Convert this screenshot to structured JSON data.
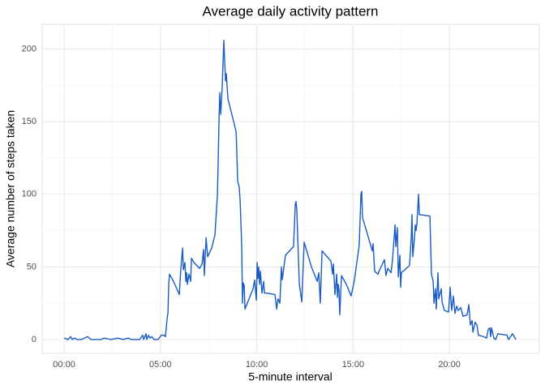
{
  "chart_data": {
    "type": "line",
    "title": "Average daily activity pattern",
    "xlabel": "5-minute interval",
    "ylabel": "Average number of steps taken",
    "grid": true,
    "xlim": [
      -1.14,
      24.67
    ],
    "ylim": [
      -9.5,
      217
    ],
    "xticks": [
      {
        "value": 0,
        "label": "00:00"
      },
      {
        "value": 5,
        "label": "05:00"
      },
      {
        "value": 10,
        "label": "10:00"
      },
      {
        "value": 15,
        "label": "15:00"
      },
      {
        "value": 20,
        "label": "20:00"
      }
    ],
    "yticks": [
      0,
      50,
      100,
      150,
      200
    ],
    "x": [
      0,
      0.21,
      0.34,
      0.42,
      0.55,
      0.67,
      0.88,
      1.22,
      1.39,
      1.94,
      2.06,
      2.44,
      2.78,
      3.07,
      3.33,
      3.49,
      3.92,
      4.08,
      4.13,
      4.25,
      4.29,
      4.38,
      4.46,
      4.55,
      4.67,
      4.88,
      5.05,
      5.18,
      5.26,
      5.35,
      5.39,
      5.43,
      5.47,
      5.68,
      5.98,
      6.06,
      6.15,
      6.19,
      6.27,
      6.32,
      6.36,
      6.4,
      6.48,
      6.57,
      6.61,
      6.74,
      7.03,
      7.16,
      7.24,
      7.28,
      7.37,
      7.45,
      7.66,
      7.83,
      7.96,
      8.04,
      8.08,
      8.13,
      8.21,
      8.29,
      8.38,
      8.42,
      8.5,
      8.93,
      9.01,
      9.09,
      9.14,
      9.22,
      9.26,
      9.3,
      9.35,
      9.39,
      9.51,
      9.81,
      9.89,
      9.98,
      10.02,
      10.06,
      10.1,
      10.15,
      10.19,
      10.27,
      10.36,
      10.4,
      10.48,
      10.95,
      11.03,
      11.11,
      11.2,
      11.28,
      11.32,
      11.49,
      11.91,
      12.0,
      12.04,
      12.08,
      12.21,
      12.34,
      12.46,
      12.84,
      13.14,
      13.22,
      13.3,
      13.39,
      13.85,
      13.94,
      13.98,
      14.06,
      14.15,
      14.19,
      14.23,
      14.27,
      14.31,
      14.4,
      14.65,
      14.9,
      15.07,
      15.32,
      15.41,
      15.45,
      15.49,
      16.0,
      16.04,
      16.12,
      16.29,
      16.38,
      16.63,
      16.71,
      16.8,
      16.97,
      17.05,
      17.18,
      17.22,
      17.3,
      17.35,
      17.43,
      17.47,
      17.51,
      17.6,
      17.77,
      17.93,
      18.02,
      18.06,
      18.1,
      18.19,
      18.23,
      18.27,
      18.31,
      18.4,
      18.44,
      18.99,
      19.07,
      19.16,
      19.2,
      19.28,
      19.32,
      19.41,
      19.45,
      19.58,
      19.62,
      19.66,
      19.74,
      19.96,
      20.04,
      20.12,
      20.21,
      20.29,
      20.38,
      20.46,
      20.59,
      20.71,
      20.92,
      21.01,
      21.09,
      21.18,
      21.22,
      21.34,
      21.43,
      21.51,
      21.77,
      21.93,
      22.02,
      22.1,
      22.14,
      22.19,
      22.31,
      22.4,
      22.52,
      22.99,
      23.07,
      23.28,
      23.37,
      23.45
    ],
    "series": [
      {
        "name": "steps",
        "color": "#1a5bc4",
        "values": [
          1,
          0,
          2,
          0,
          1,
          0,
          0,
          2,
          0,
          0,
          1,
          0,
          1,
          0,
          1,
          0,
          0,
          3,
          0,
          4,
          0,
          3,
          1,
          2,
          0,
          0,
          3,
          3,
          2,
          15,
          18,
          38,
          45,
          40,
          31,
          49,
          63,
          48,
          53,
          40,
          46,
          38,
          45,
          40,
          56,
          53,
          49,
          52,
          62,
          44,
          70,
          57,
          63,
          72,
          100,
          150,
          170,
          155,
          175,
          206,
          178,
          183,
          166,
          143,
          109,
          105,
          95,
          64,
          25,
          39,
          37,
          21,
          25,
          35,
          41,
          27,
          53,
          42,
          50,
          38,
          47,
          32,
          40,
          32,
          32,
          31,
          21,
          28,
          25,
          50,
          41,
          58,
          64,
          93,
          95,
          89,
          38,
          26,
          67,
          50,
          40,
          46,
          25,
          61,
          54,
          45,
          52,
          31,
          45,
          29,
          38,
          34,
          17,
          44,
          38,
          30,
          41,
          65,
          100,
          102,
          84,
          61,
          66,
          47,
          45,
          48,
          55,
          44,
          49,
          46,
          55,
          79,
          64,
          77,
          43,
          58,
          36,
          46,
          47,
          49,
          51,
          70,
          86,
          57,
          70,
          79,
          75,
          79,
          100,
          86,
          85,
          45,
          40,
          25,
          35,
          21,
          46,
          28,
          35,
          26,
          24,
          20,
          19,
          36,
          20,
          30,
          18,
          23,
          20,
          22,
          16,
          17,
          24,
          10,
          13,
          5,
          12,
          10,
          3,
          2,
          1,
          7,
          8,
          2,
          8,
          1,
          0,
          4,
          3,
          0,
          4,
          2,
          0
        ]
      }
    ]
  }
}
